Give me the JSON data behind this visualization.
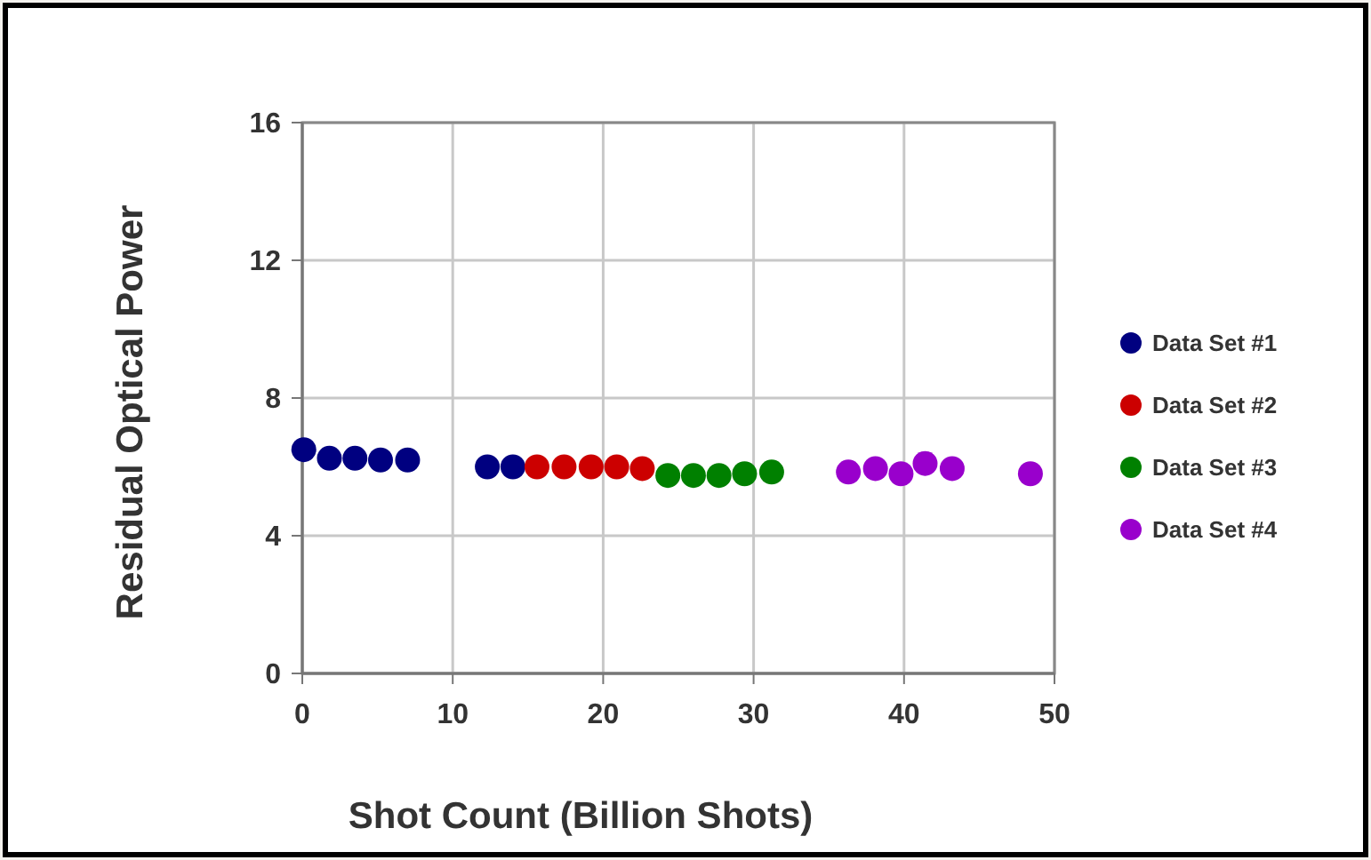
{
  "chart_data": {
    "type": "scatter",
    "xlabel": "Shot Count (Billion Shots)",
    "ylabel": "Residual Optical Power",
    "xlim": [
      0,
      50
    ],
    "xticks": [
      0,
      10,
      20,
      30,
      40,
      50
    ],
    "ylim": [
      0,
      16
    ],
    "yticks": [
      0,
      4,
      8,
      12,
      16
    ],
    "grid": true,
    "legend": "right",
    "marker": "circle",
    "series": [
      {
        "name": "Data Set #1",
        "color": "#000080",
        "x": [
          0.1,
          1.8,
          3.5,
          5.2,
          7.0,
          12.3,
          14.0
        ],
        "values": [
          6.5,
          6.25,
          6.25,
          6.2,
          6.2,
          6.0,
          6.0
        ]
      },
      {
        "name": "Data Set #2",
        "color": "#cc0000",
        "x": [
          15.6,
          17.4,
          19.2,
          20.9,
          22.6
        ],
        "values": [
          6.0,
          6.0,
          6.0,
          6.0,
          5.95
        ]
      },
      {
        "name": "Data Set #3",
        "color": "#008000",
        "x": [
          24.3,
          26.0,
          27.7,
          29.4,
          31.2
        ],
        "values": [
          5.75,
          5.75,
          5.75,
          5.8,
          5.85
        ]
      },
      {
        "name": "Data Set #4",
        "color": "#9900cc",
        "x": [
          36.3,
          38.1,
          39.8,
          41.4,
          43.2,
          48.4
        ],
        "values": [
          5.85,
          5.95,
          5.8,
          6.1,
          5.95,
          5.8
        ]
      }
    ]
  }
}
